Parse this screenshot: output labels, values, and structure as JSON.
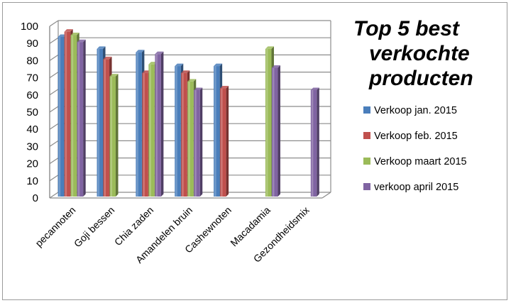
{
  "chart_data": {
    "type": "bar",
    "title": "Top 5 best verkochte producten",
    "title_lines": [
      "Top 5 best",
      "verkochte",
      "producten"
    ],
    "categories": [
      "pecannoten",
      "Goji bessen",
      "Chia zaden",
      "Amandelen bruin",
      "Cashewnoten",
      "Macadamia",
      "Gezondheidsmix"
    ],
    "series": [
      {
        "name": "Verkoop jan. 2015",
        "color": "#4a7ebb",
        "values": [
          93,
          86,
          84,
          76,
          76,
          null,
          null
        ]
      },
      {
        "name": "Verkoop feb. 2015",
        "color": "#c0504d",
        "values": [
          96,
          80,
          72,
          72,
          63,
          null,
          null
        ]
      },
      {
        "name": "Verkoop maart  2015",
        "color": "#9bbb59",
        "values": [
          94,
          70,
          77,
          67,
          null,
          86,
          null
        ]
      },
      {
        "name": "verkoop april 2015",
        "color": "#8064a2",
        "values": [
          90,
          null,
          83,
          62,
          null,
          75,
          62
        ]
      }
    ],
    "ylim": [
      0,
      100
    ],
    "yticks": [
      0,
      10,
      20,
      30,
      40,
      50,
      60,
      70,
      80,
      90,
      100
    ],
    "grid": true,
    "legend": "right",
    "xlabel": "",
    "ylabel": ""
  }
}
